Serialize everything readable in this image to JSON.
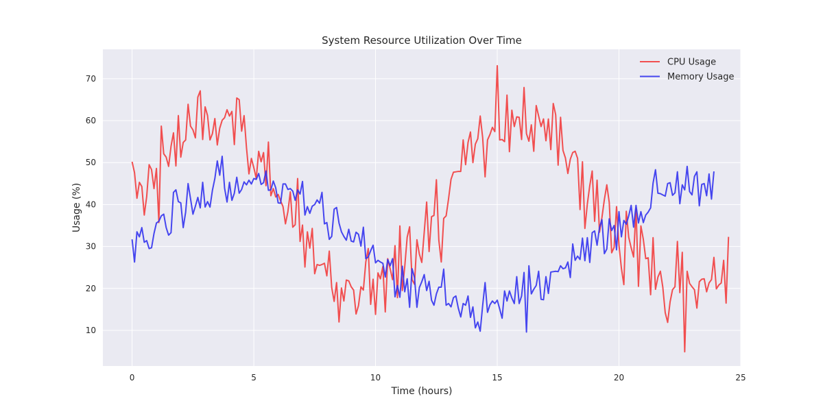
{
  "chart_data": {
    "type": "line",
    "title": "System Resource Utilization Over Time",
    "xlabel": "Time (hours)",
    "ylabel": "Usage (%)",
    "xlim": [
      -1.2,
      25
    ],
    "ylim": [
      1.5,
      77
    ],
    "xticks": [
      0,
      5,
      10,
      15,
      20,
      25
    ],
    "yticks": [
      10,
      20,
      30,
      40,
      50,
      60,
      70
    ],
    "grid": true,
    "legend_position": "top-right",
    "x_start": 0,
    "x_step": 0.1,
    "series": [
      {
        "name": "CPU Usage",
        "color": "#f23d3d",
        "values": [
          50.2,
          47.6,
          41.5,
          45.3,
          44.3,
          37.5,
          41.9,
          49.5,
          48.3,
          43.8,
          48.6,
          35.7,
          58.7,
          52.1,
          51.3,
          49.1,
          53.9,
          57.1,
          49.2,
          61.2,
          51.3,
          54.8,
          55.4,
          63.9,
          58.7,
          57.8,
          55.9,
          65.6,
          67.1,
          55.5,
          63.3,
          61.2,
          55.4,
          56.9,
          60.5,
          54.2,
          58.2,
          60.1,
          60.7,
          62.6,
          61.1,
          62.2,
          54.3,
          65.4,
          65.0,
          57.5,
          61.2,
          53.5,
          47.3,
          51.0,
          48.8,
          46.2,
          52.7,
          50.2,
          52.4,
          44.5,
          54.9,
          42.1,
          43.8,
          41.8,
          42.4,
          40.9,
          39.5,
          35.4,
          38.3,
          43.0,
          34.6,
          35.2,
          46.2,
          31.2,
          35.1,
          25.1,
          33.5,
          29.6,
          34.3,
          23.5,
          25.7,
          25.5,
          25.7,
          26.0,
          23.0,
          28.9,
          20.2,
          16.9,
          21.4,
          12.0,
          20.1,
          17.0,
          22.0,
          21.8,
          20.4,
          19.6,
          13.9,
          15.9,
          20.4,
          19.6,
          26.3,
          29.5,
          16.2,
          22.2,
          13.8,
          23.7,
          22.3,
          25.2,
          14.4,
          27.1,
          24.7,
          22.1,
          30.2,
          17.8,
          34.9,
          19.5,
          25.2,
          32.2,
          34.7,
          22.1,
          21.0,
          31.6,
          28.2,
          26.2,
          33.4,
          40.6,
          28.8,
          37.1,
          37.4,
          45.9,
          31.5,
          26.3,
          36.7,
          37.3,
          41.4,
          46.0,
          47.7,
          47.8,
          47.9,
          47.9,
          55.4,
          49.5,
          54.8,
          57.3,
          50.0,
          54.4,
          55.7,
          61.1,
          56.0,
          46.6,
          55.4,
          56.7,
          58.4,
          57.4,
          73.1,
          55.4,
          55.5,
          55.0,
          66.1,
          52.6,
          62.5,
          58.6,
          60.9,
          60.8,
          55.5,
          67.9,
          56.9,
          55.1,
          59.0,
          52.7,
          63.6,
          61.1,
          58.6,
          60.4,
          55.2,
          60.4,
          53.1,
          64.1,
          61.4,
          49.4,
          60.8,
          52.9,
          51.1,
          47.4,
          50.8,
          52.4,
          52.7,
          51.0,
          38.8,
          50.2,
          34.3,
          40.1,
          44.5,
          48.0,
          36.0,
          45.8,
          33.4,
          36.9,
          41.2,
          44.7,
          40.5,
          28.5,
          29.8,
          39.5,
          30.3,
          24.8,
          20.9,
          38.4,
          32.2,
          29.7,
          27.5,
          39.0,
          20.5,
          34.9,
          31.7,
          27.1,
          27.3,
          18.5,
          32.1,
          19.8,
          22.7,
          24.1,
          20.3,
          14.2,
          11.9,
          16.8,
          19.7,
          20.4,
          31.2,
          19.0,
          28.6,
          4.9,
          24.1,
          21.2,
          20.4,
          19.7,
          15.3,
          21.6,
          22.2,
          22.3,
          19.2,
          21.3,
          22.1,
          27.4,
          19.9,
          20.8,
          21.3,
          26.7,
          16.5,
          32.3
        ]
      },
      {
        "name": "Memory Usage",
        "color": "#3333ee",
        "values": [
          31.7,
          26.3,
          33.5,
          32.3,
          34.5,
          31.0,
          31.4,
          29.5,
          29.7,
          33.1,
          35.6,
          36.0,
          37.3,
          37.7,
          34.5,
          32.7,
          33.3,
          42.9,
          43.5,
          40.7,
          40.4,
          34.5,
          38.2,
          45.0,
          41.4,
          37.7,
          39.6,
          41.7,
          39.2,
          45.3,
          39.4,
          40.7,
          39.4,
          43.4,
          46.2,
          50.4,
          47.0,
          51.5,
          43.9,
          40.6,
          45.3,
          41.0,
          42.7,
          46.5,
          42.7,
          43.6,
          45.4,
          44.7,
          45.8,
          44.9,
          46.2,
          46.0,
          47.4,
          44.8,
          45.2,
          48.0,
          43.4,
          43.5,
          45.6,
          44.0,
          40.4,
          40.3,
          44.9,
          44.9,
          43.6,
          43.8,
          43.2,
          41.0,
          43.5,
          42.5,
          45.5,
          37.5,
          39.5,
          37.9,
          39.6,
          40.0,
          41.1,
          40.3,
          42.9,
          35.4,
          35.7,
          31.7,
          32.4,
          38.9,
          39.3,
          35.6,
          33.5,
          32.4,
          31.5,
          34.1,
          31.3,
          31.1,
          33.4,
          32.9,
          30.1,
          34.6,
          27.1,
          27.5,
          29.0,
          30.3,
          26.1,
          26.7,
          26.3,
          26.0,
          22.7,
          26.9,
          25.4,
          27.1,
          18.0,
          20.7,
          17.9,
          25.3,
          19.2,
          22.3,
          15.5,
          24.7,
          22.6,
          15.5,
          20.2,
          21.6,
          23.3,
          19.5,
          21.7,
          17.2,
          16.0,
          18.7,
          20.3,
          20.3,
          24.6,
          16.0,
          16.4,
          15.6,
          17.8,
          18.2,
          15.3,
          13.2,
          16.4,
          16.0,
          18.2,
          13.1,
          15.6,
          10.6,
          12.0,
          9.8,
          15.9,
          21.4,
          14.3,
          16.1,
          17.0,
          16.4,
          17.2,
          15.1,
          12.9,
          19.4,
          17.0,
          19.4,
          17.7,
          16.4,
          22.8,
          16.4,
          18.2,
          23.8,
          9.6,
          25.4,
          18.7,
          19.8,
          20.7,
          24.1,
          17.4,
          17.3,
          22.8,
          18.8,
          23.9,
          24.0,
          24.1,
          24.0,
          25.4,
          24.7,
          24.9,
          26.3,
          22.6,
          30.6,
          26.7,
          27.7,
          26.9,
          32.0,
          26.6,
          32.1,
          26.2,
          33.3,
          33.7,
          30.3,
          34.5,
          36.4,
          28.3,
          29.4,
          36.6,
          33.8,
          35.0,
          29.2,
          38.3,
          32.3,
          36.2,
          35.3,
          37.3,
          39.8,
          34.6,
          39.8,
          35.6,
          38.3,
          35.7,
          37.5,
          38.2,
          39.2,
          45.1,
          48.3,
          42.7,
          42.6,
          42.3,
          42.0,
          45.0,
          45.2,
          42.2,
          42.8,
          47.8,
          40.2,
          44.7,
          43.5,
          49.1,
          43.1,
          42.3,
          46.7,
          47.8,
          39.7,
          44.8,
          45.0,
          42.1,
          47.3,
          41.3,
          47.9
        ]
      }
    ]
  }
}
